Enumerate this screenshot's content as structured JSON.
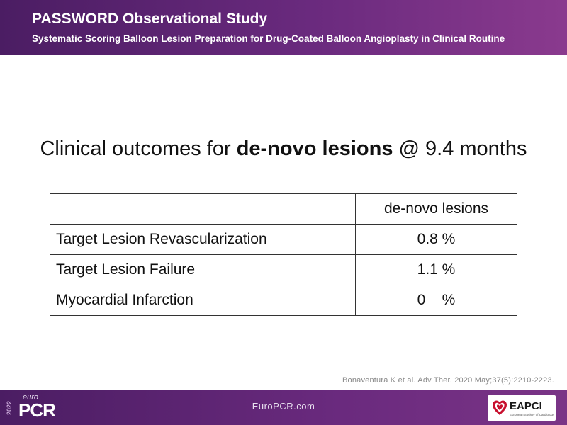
{
  "header": {
    "title": "PASSWORD Observational Study",
    "subtitle": "Systematic Scoring Balloon Lesion Preparation for Drug-Coated Balloon Angioplasty in Clinical Routine"
  },
  "headline": {
    "prefix": "Clinical outcomes for ",
    "bold": "de-novo lesions",
    "suffix": " @ 9.4 months"
  },
  "table": {
    "header_label": "",
    "column_header": "de-novo lesions",
    "rows": [
      {
        "label": "Target Lesion Revascularization",
        "value": "0.8 %"
      },
      {
        "label": "Target Lesion Failure",
        "value": "1.1 %"
      },
      {
        "label": "Myocardial Infarction",
        "value": "0    %"
      }
    ]
  },
  "citation": "Bonaventura K et al. Adv Ther.  2020 May;37(5):2210-2223.",
  "footer": {
    "logo_year": "2022",
    "logo_euro": "euro",
    "logo_pcr": "PCR",
    "url": "EuroPCR.com",
    "eapci_label": "EAPCI",
    "eapci_sub": "European Society of Cardiology"
  },
  "colors": {
    "brand_purple": "#5a2370",
    "accent_red": "#c8102e"
  }
}
